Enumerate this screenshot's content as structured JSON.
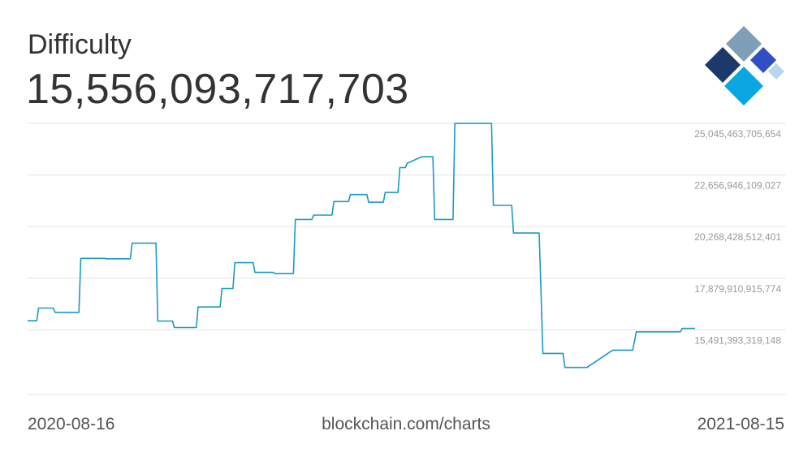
{
  "header": {
    "title": "Difficulty",
    "current_value": "15,556,093,717,703"
  },
  "footer": {
    "start_date": "2020-08-16",
    "source": "blockchain.com/charts",
    "end_date": "2021-08-15"
  },
  "logo": {
    "icon": "blockchain-diamond-logo",
    "colors": [
      "#7f9fb8",
      "#1b3a6b",
      "#2f4fc4",
      "#0aa6e1",
      "#b7d8ec"
    ]
  },
  "chart_data": {
    "type": "line",
    "title": "Difficulty",
    "line_color": "#1a9bc4",
    "grid": true,
    "ylim": [
      12500000000000,
      25045463705654
    ],
    "y_ticks": [
      "25,045,463,705,654",
      "22,656,946,109,027",
      "20,268,428,512,401",
      "17,879,910,915,774",
      "15,491,393,319,148"
    ],
    "y_tick_values": [
      25045463705654,
      22656946109027,
      20268428512401,
      17879910915774,
      15491393319148
    ],
    "x_range": [
      "2020-08-16",
      "2021-08-15"
    ],
    "series": [
      {
        "x": [
          "2020-08-16",
          "2020-08-21",
          "2020-08-22",
          "2020-08-30",
          "2020-08-31",
          "2020-09-13",
          "2020-09-14",
          "2020-09-27",
          "2020-09-28",
          "2020-10-11",
          "2020-10-12",
          "2020-10-25",
          "2020-10-26",
          "2020-11-03",
          "2020-11-04",
          "2020-11-08",
          "2020-11-09",
          "2020-11-16",
          "2020-11-17",
          "2020-11-29",
          "2020-11-30",
          "2020-12-06",
          "2020-12-07",
          "2020-12-17",
          "2020-12-18",
          "2020-12-28",
          "2020-12-29",
          "2021-01-08",
          "2021-01-09",
          "2021-01-18",
          "2021-01-19",
          "2021-01-29",
          "2021-01-30",
          "2021-02-07",
          "2021-02-08",
          "2021-02-17",
          "2021-02-18",
          "2021-02-26",
          "2021-02-27",
          "2021-03-06",
          "2021-03-07",
          "2021-03-10",
          "2021-03-11",
          "2021-03-19",
          "2021-03-20",
          "2021-03-25",
          "2021-03-26",
          "2021-04-05",
          "2021-04-06",
          "2021-04-15",
          "2021-04-16",
          "2021-04-26",
          "2021-04-27",
          "2021-05-07",
          "2021-05-08",
          "2021-05-11",
          "2021-05-12",
          "2021-05-22",
          "2021-05-24",
          "2021-06-04",
          "2021-06-05",
          "2021-06-16",
          "2021-06-17",
          "2021-07-01",
          "2021-07-03",
          "2021-07-12",
          "2021-07-14",
          "2021-07-22",
          "2021-07-24",
          "2021-08-07",
          "2021-08-08",
          "2021-08-15"
        ],
        "y": [
          15910000000000,
          15910000000000,
          16500000000000,
          16500000000000,
          16300000000000,
          16300000000000,
          18800000000000,
          18800000000000,
          18780000000000,
          18780000000000,
          19500000000000,
          19500000000000,
          15900000000000,
          15900000000000,
          15600000000000,
          15600000000000,
          15600000000000,
          15600000000000,
          16550000000000,
          16550000000000,
          17400000000000,
          17400000000000,
          18600000000000,
          18600000000000,
          18150000000000,
          18150000000000,
          18100000000000,
          18100000000000,
          20600000000000,
          20600000000000,
          20800000000000,
          20800000000000,
          21430000000000,
          21430000000000,
          21750000000000,
          21750000000000,
          21400000000000,
          21400000000000,
          21850000000000,
          21850000000000,
          23000000000000,
          23000000000000,
          23200000000000,
          23500000000000,
          23500000000000,
          23500000000000,
          20600000000000,
          20600000000000,
          25050000000000,
          25050000000000,
          25050000000000,
          25050000000000,
          21250000000000,
          21250000000000,
          19970000000000,
          19970000000000,
          19970000000000,
          19970000000000,
          14400000000000,
          14400000000000,
          13750000000000,
          13750000000000,
          13750000000000,
          14550000000000,
          14550000000000,
          14550000000000,
          15400000000000,
          15400000000000,
          15400000000000,
          15400000000000,
          15556093717703,
          15556093717703
        ]
      }
    ]
  }
}
